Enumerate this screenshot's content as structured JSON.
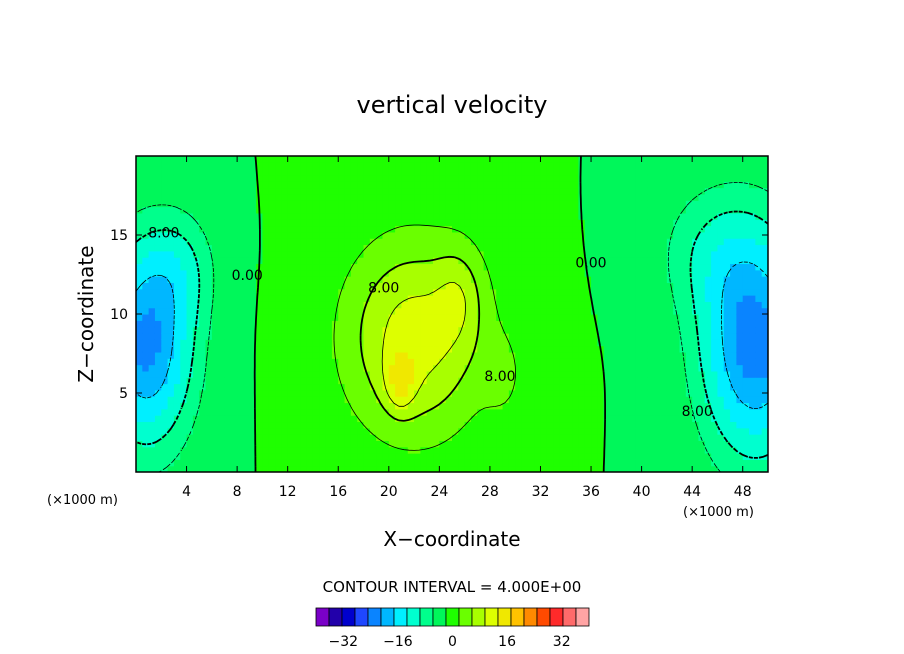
{
  "title": "vertical velocity",
  "chart_data": {
    "type": "contour",
    "title": "vertical velocity",
    "xlabel": "X−coordinate",
    "ylabel": "Z−coordinate",
    "x_unit": "(×1000 m)",
    "z_unit": "(×1000 m)",
    "xlim": [
      0,
      50
    ],
    "ylim": [
      0,
      20
    ],
    "x_ticks": [
      4,
      8,
      12,
      16,
      20,
      24,
      28,
      32,
      36,
      40,
      44,
      48
    ],
    "y_ticks": [
      5,
      10,
      15
    ],
    "contour_interval_text": "CONTOUR INTERVAL =  4.000E+00",
    "contour_labels": [
      {
        "text": "8.00",
        "x": 2.2,
        "z": 15.1
      },
      {
        "text": "0.00",
        "x": 8.8,
        "z": 12.4
      },
      {
        "text": "8.00",
        "x": 19.6,
        "z": 11.6
      },
      {
        "text": "8.00",
        "x": 28.8,
        "z": 6.0
      },
      {
        "text": "0.00",
        "x": 36.0,
        "z": 13.2
      },
      {
        "text": "8.00",
        "x": 44.4,
        "z": 3.8
      }
    ],
    "colorbar": {
      "tick_labels": [
        "−32",
        "−16",
        "0",
        "16",
        "32"
      ],
      "tick_values": [
        -32,
        -16,
        0,
        16,
        32
      ],
      "levels": [
        -40,
        -36,
        -32,
        -28,
        -24,
        -20,
        -16,
        -12,
        -8,
        -4,
        0,
        4,
        8,
        12,
        16,
        20,
        24,
        28,
        32,
        36,
        40
      ],
      "colors": [
        "#7a00c8",
        "#2200aa",
        "#0000cd",
        "#1f47ff",
        "#0a84ff",
        "#00b7ff",
        "#00efff",
        "#00ffcf",
        "#00ff8c",
        "#00f75a",
        "#1fff00",
        "#6aff00",
        "#a8ff00",
        "#ddff00",
        "#f0e800",
        "#ffc200",
        "#ff8a00",
        "#ff4a00",
        "#ff2a2a",
        "#ff6a6a",
        "#ffa4a4"
      ]
    },
    "features": [
      {
        "name": "updraft",
        "sign": 1,
        "x": 22,
        "z": 8.5,
        "sx": 4.0,
        "sz": 4.5,
        "amp": 14
      },
      {
        "name": "updraft-core-left",
        "sign": 1,
        "x": 20.9,
        "z": 5.8,
        "sx": 0.8,
        "sz": 1.3,
        "amp": 8
      },
      {
        "name": "updraft-lobe",
        "sign": 1,
        "x": 25.6,
        "z": 11.2,
        "sx": 1.3,
        "sz": 2.2,
        "amp": 5
      },
      {
        "name": "updraft-lower",
        "sign": 1,
        "x": 29.2,
        "z": 6.0,
        "sx": 1.2,
        "sz": 2.0,
        "amp": 3
      },
      {
        "name": "downdraft-left",
        "sign": -1,
        "x": 0.8,
        "z": 8,
        "sx": 2.6,
        "sz": 4.5,
        "amp": 21
      },
      {
        "name": "downdraft-left-upper",
        "sign": -1,
        "x": 3.5,
        "z": 13,
        "sx": 2.0,
        "sz": 2.5,
        "amp": 6
      },
      {
        "name": "downdraft-right",
        "sign": -1,
        "x": 49.0,
        "z": 8,
        "sx": 3.0,
        "sz": 5.0,
        "amp": 22
      },
      {
        "name": "downdraft-right-upper",
        "sign": -1,
        "x": 45.5,
        "z": 14,
        "sx": 3.0,
        "sz": 3.0,
        "amp": 6
      }
    ]
  }
}
